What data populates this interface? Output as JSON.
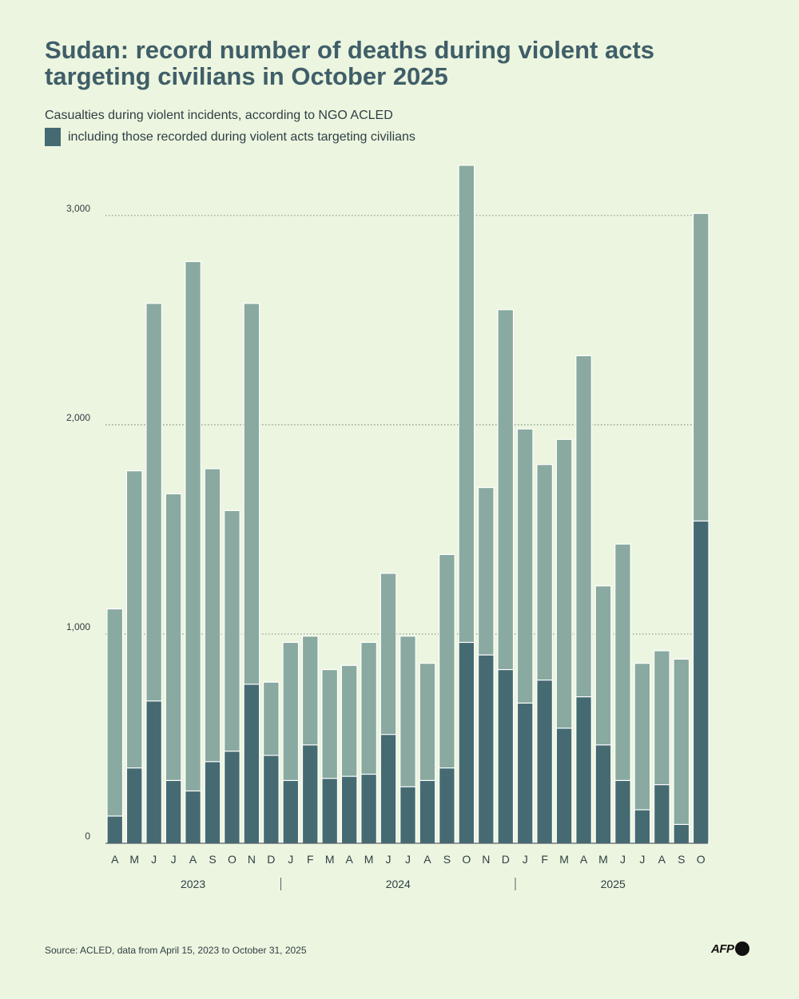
{
  "title": "Sudan: record number of deaths during violent acts targeting civilians in October 2025",
  "subtitle": "Casualties during violent incidents, according to NGO ACLED",
  "legend": {
    "label": "including those recorded during violent acts targeting civilians"
  },
  "source": "Source: ACLED, data from April 15, 2023 to October 31, 2025",
  "logo": {
    "text": "AFP"
  },
  "colors": {
    "total_bar": "#89a9a1",
    "civilian_bar": "#456a72",
    "grid": "#556b60",
    "text": "#2f3f45"
  },
  "chart_data": {
    "type": "bar",
    "stacked": "overlay",
    "categories": [
      "A",
      "M",
      "J",
      "J",
      "A",
      "S",
      "O",
      "N",
      "D",
      "J",
      "F",
      "M",
      "A",
      "M",
      "J",
      "J",
      "A",
      "S",
      "O",
      "N",
      "D",
      "J",
      "F",
      "M",
      "A",
      "M",
      "J",
      "J",
      "A",
      "S",
      "O"
    ],
    "year_labels": [
      "2023",
      "2024",
      "2025"
    ],
    "series": [
      {
        "values": [
          1120,
          1780,
          2580,
          1670,
          2780,
          1790,
          1590,
          2580,
          770,
          960,
          990,
          830,
          850,
          960,
          1290,
          990,
          860,
          1380,
          3240,
          1700,
          2550,
          1980,
          1810,
          1930,
          2330,
          1230,
          1430,
          860,
          920,
          880,
          3010
        ]
      },
      {
        "values": [
          130,
          360,
          680,
          300,
          250,
          390,
          440,
          760,
          420,
          300,
          470,
          310,
          320,
          330,
          520,
          270,
          300,
          360,
          960,
          900,
          830,
          670,
          780,
          550,
          700,
          470,
          300,
          160,
          280,
          90,
          1540
        ]
      }
    ],
    "y_ticks": [
      "0",
      "1,000",
      "2,000",
      "3,000"
    ],
    "y_tick_values": [
      0,
      1000,
      2000,
      3000
    ],
    "ylim": [
      0,
      3240
    ],
    "grid": true,
    "legend_position": "top-left"
  }
}
